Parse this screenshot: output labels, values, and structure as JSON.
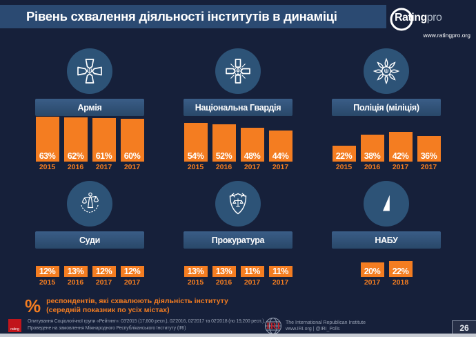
{
  "slide": {
    "title": "Рівень схвалення діяльності інститутів в динаміці",
    "page_number": "26"
  },
  "brand": {
    "name_bold": "Rating",
    "name_light": "pro",
    "url": "www.ratingpro.org"
  },
  "panels": [
    {
      "id": "army",
      "title": "Армія",
      "icon": "army-emblem-icon",
      "years": [
        "2015",
        "2016",
        "2017",
        "2017"
      ],
      "values": [
        63,
        62,
        61,
        60
      ]
    },
    {
      "id": "national-guard",
      "title": "Національна Гвардія",
      "icon": "guard-emblem-icon",
      "years": [
        "2015",
        "2016",
        "2017",
        "2017"
      ],
      "values": [
        54,
        52,
        48,
        44
      ]
    },
    {
      "id": "police",
      "title": "Поліція (міліція)",
      "icon": "police-emblem-icon",
      "years": [
        "2015",
        "2016",
        "2017",
        "2017"
      ],
      "values": [
        22,
        38,
        42,
        36
      ]
    },
    {
      "id": "courts",
      "title": "Суди",
      "icon": "courts-emblem-icon",
      "years": [
        "2015",
        "2016",
        "2017",
        "2017"
      ],
      "values": [
        12,
        13,
        12,
        12
      ]
    },
    {
      "id": "prosecutor",
      "title": "Прокуратура",
      "icon": "prosecutor-emblem-icon",
      "years": [
        "2015",
        "2016",
        "2017",
        "2017"
      ],
      "values": [
        13,
        13,
        11,
        11
      ]
    },
    {
      "id": "nabu",
      "title": "НАБУ",
      "icon": "nabu-emblem-icon",
      "years": [
        "2017",
        "2018"
      ],
      "values": [
        20,
        22
      ]
    }
  ],
  "footnote": {
    "symbol": "%",
    "line1": "респондентів, які схвалюють діяльність інституту",
    "line2": "(середній показник по усіх містах)"
  },
  "footer": {
    "rating_logo_label": "rating",
    "line1": "Опитування Соціологічної групи «Рейтинг»: 03'2015 (17,600 респ.), 02'2016, 02'2017 та 02'2018 (по 19,200 респ.).",
    "line2": "Проведене на замовлення Міжнародного Республіканського Інституту (IRI)",
    "iri_logo": "IRI",
    "iri_line1": "The International Republican Institute",
    "iri_line2": "www.IRI.org | @IRI_Polls"
  },
  "colors": {
    "background": "#16203a",
    "header_band": "#2b4a72",
    "panel_title_bar": "#2e5078",
    "icon_circle": "#2d5377",
    "bar_orange": "#f47d21",
    "footer_text_gray": "#97a0b3",
    "logo_red": "#c1151b",
    "bottom_strip_gray": "#c7cbd3"
  },
  "chart_data": [
    {
      "type": "bar",
      "title": "Армія",
      "categories": [
        "2015",
        "2016",
        "2017",
        "2017"
      ],
      "values": [
        63,
        62,
        61,
        60
      ],
      "unit": "%",
      "ylim": [
        0,
        100
      ],
      "bar_color": "#f47d21",
      "value_labels": [
        "63%",
        "62%",
        "61%",
        "60%"
      ]
    },
    {
      "type": "bar",
      "title": "Національна Гвардія",
      "categories": [
        "2015",
        "2016",
        "2017",
        "2017"
      ],
      "values": [
        54,
        52,
        48,
        44
      ],
      "unit": "%",
      "ylim": [
        0,
        100
      ],
      "bar_color": "#f47d21",
      "value_labels": [
        "54%",
        "52%",
        "48%",
        "44%"
      ]
    },
    {
      "type": "bar",
      "title": "Поліція (міліція)",
      "categories": [
        "2015",
        "2016",
        "2017",
        "2017"
      ],
      "values": [
        22,
        38,
        42,
        36
      ],
      "unit": "%",
      "ylim": [
        0,
        100
      ],
      "bar_color": "#f47d21",
      "value_labels": [
        "22%",
        "38%",
        "42%",
        "36%"
      ]
    },
    {
      "type": "bar",
      "title": "Суди",
      "categories": [
        "2015",
        "2016",
        "2017",
        "2017"
      ],
      "values": [
        12,
        13,
        12,
        12
      ],
      "unit": "%",
      "ylim": [
        0,
        100
      ],
      "bar_color": "#f47d21",
      "value_labels": [
        "12%",
        "13%",
        "12%",
        "12%"
      ]
    },
    {
      "type": "bar",
      "title": "Прокуратура",
      "categories": [
        "2015",
        "2016",
        "2017",
        "2017"
      ],
      "values": [
        13,
        13,
        11,
        11
      ],
      "unit": "%",
      "ylim": [
        0,
        100
      ],
      "bar_color": "#f47d21",
      "value_labels": [
        "13%",
        "13%",
        "11%",
        "11%"
      ]
    },
    {
      "type": "bar",
      "title": "НАБУ",
      "categories": [
        "2017",
        "2018"
      ],
      "values": [
        20,
        22
      ],
      "unit": "%",
      "ylim": [
        0,
        100
      ],
      "bar_color": "#f47d21",
      "value_labels": [
        "20%",
        "22%"
      ]
    }
  ]
}
